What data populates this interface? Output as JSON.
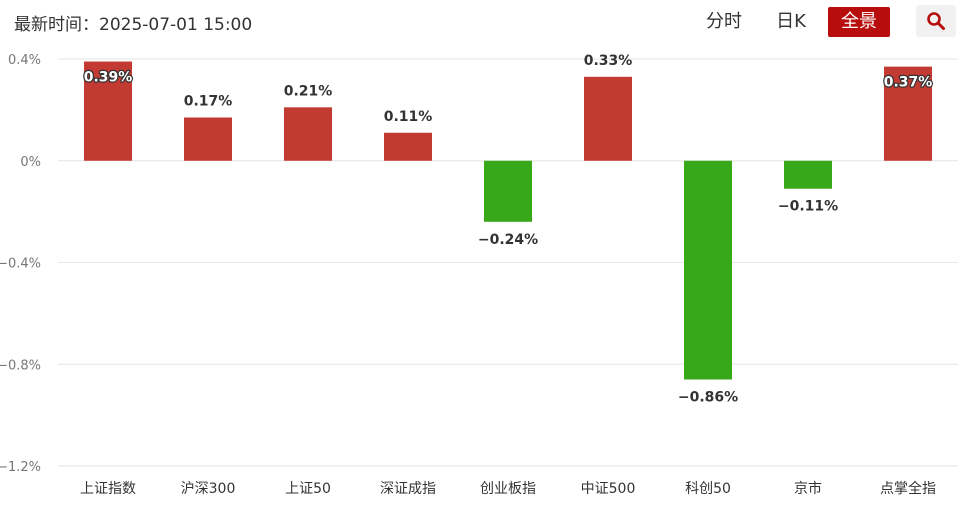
{
  "header": {
    "update_time": "最新时间：2025-07-01 15:00",
    "tabs": [
      {
        "label": "分时",
        "active": false
      },
      {
        "label": "日K",
        "active": false
      },
      {
        "label": "全景",
        "active": true
      }
    ],
    "search_icon": "search-icon"
  },
  "colors": {
    "up": "#c33a32",
    "down": "#36a81a",
    "accent": "#b80d0d",
    "grid": "#e6e6e6"
  },
  "chart_data": {
    "type": "bar",
    "categories": [
      "上证指数",
      "沪深300",
      "上证50",
      "深证成指",
      "创业板指",
      "中证500",
      "科创50",
      "京市",
      "点掌全指"
    ],
    "values": [
      0.39,
      0.17,
      0.21,
      0.11,
      -0.24,
      0.33,
      -0.86,
      -0.11,
      0.37
    ],
    "data_labels": [
      "0.39%",
      "0.17%",
      "0.21%",
      "0.11%",
      "−0.24%",
      "0.33%",
      "−0.86%",
      "−0.11%",
      "0.37%"
    ],
    "yticks": [
      0.4,
      0,
      -0.4,
      -0.8,
      -1.2
    ],
    "ytick_labels": [
      "0.4%",
      "0%",
      "−0.4%",
      "−0.8%",
      "−1.2%"
    ],
    "ylim": [
      -1.2,
      0.4
    ],
    "grid": true,
    "xlabel": "",
    "ylabel": ""
  }
}
